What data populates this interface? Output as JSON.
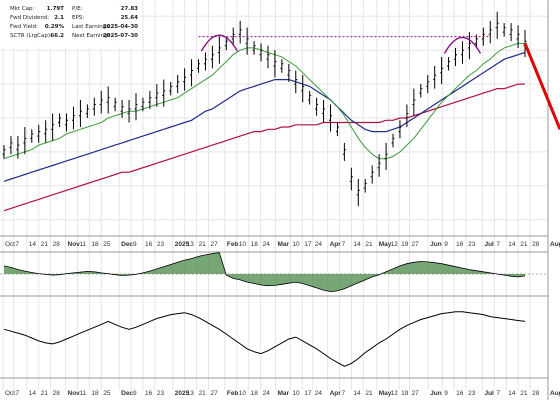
{
  "info": {
    "left": [
      {
        "label": "Mkt Cap:",
        "value": "1.79T"
      },
      {
        "label": "Fwd Dividend:",
        "value": "2.1"
      },
      {
        "label": "Fwd Yield:",
        "value": "0.29%"
      },
      {
        "label": "SCTR (LrgCap):",
        "value": "66.2"
      }
    ],
    "right": [
      {
        "label": "P/E:",
        "value": "27.83"
      },
      {
        "label": "EPS:",
        "value": "25.64"
      },
      {
        "label": "Last Earnings:",
        "value": "2025-04-30"
      },
      {
        "label": "Next Earnings:",
        "value": "2025-07-30"
      }
    ]
  },
  "colors": {
    "price": "#000000",
    "ma_green": "#3c9a3c",
    "ma_navy": "#202c8c",
    "ma_red": "#b01040",
    "annotation": "#8a0f8a",
    "projection": "#e00000",
    "histogram": "#4a8a4a"
  },
  "chart_data": [
    {
      "type": "line",
      "panel": "price",
      "x_ticks": [
        "Oct",
        "7",
        "14",
        "21",
        "28",
        "Nov",
        "11",
        "18",
        "25",
        "Dec",
        "9",
        "16",
        "23",
        "2025",
        "13",
        "21",
        "27",
        "Feb",
        "10",
        "18",
        "24",
        "Mar",
        "10",
        "17",
        "24",
        "Apr",
        "7",
        "14",
        "21",
        "May",
        "12",
        "19",
        "27",
        "Jun",
        "9",
        "16",
        "23",
        "Jul",
        "7",
        "14",
        "21",
        "28",
        "Aug"
      ],
      "x_label_positions": [
        4,
        18,
        36,
        52,
        68,
        88,
        104,
        120,
        136,
        160,
        176,
        192,
        208,
        232,
        248,
        264,
        280,
        302,
        318,
        334,
        350,
        370,
        390,
        406,
        420,
        440,
        456,
        472,
        488,
        506,
        522,
        536,
        550,
        575,
        594,
        610,
        626,
        648,
        664,
        680,
        696,
        712,
        736
      ],
      "series": [
        {
          "role": "price",
          "values": [
            130,
            133,
            132,
            135,
            137,
            138,
            139,
            141,
            144,
            143,
            145,
            147,
            148,
            150,
            152,
            153,
            151,
            149,
            148,
            150,
            151,
            153,
            155,
            156,
            158,
            160,
            162,
            165,
            168,
            170,
            172,
            175,
            178,
            181,
            183,
            179,
            176,
            174,
            172,
            169,
            168,
            165,
            161,
            158,
            154,
            150,
            148,
            145,
            140,
            130,
            118,
            112,
            115,
            120,
            124,
            128,
            135,
            140,
            146,
            152,
            157,
            160,
            163,
            166,
            169,
            172,
            174,
            177,
            179,
            181,
            183,
            186,
            184,
            183,
            181,
            178
          ]
        },
        {
          "role": "ma_short",
          "values": [
            127,
            128,
            129,
            130,
            131,
            133,
            134,
            135,
            136,
            138,
            139,
            140,
            141,
            142,
            143,
            145,
            146,
            147,
            148,
            148,
            149,
            150,
            151,
            152,
            153,
            154,
            156,
            158,
            160,
            162,
            164,
            167,
            170,
            173,
            175,
            176,
            176,
            175,
            174,
            173,
            172,
            170,
            168,
            165,
            162,
            159,
            156,
            153,
            150,
            146,
            141,
            136,
            132,
            129,
            127,
            127,
            128,
            130,
            133,
            136,
            140,
            144,
            148,
            152,
            155,
            158,
            161,
            164,
            166,
            169,
            171,
            174,
            176,
            177,
            178,
            178
          ]
        },
        {
          "role": "ma_medium",
          "values": [
            117,
            118,
            119,
            120,
            121,
            122,
            123,
            124,
            125,
            126,
            127,
            128,
            129,
            130,
            131,
            132,
            133,
            134,
            135,
            136,
            137,
            138,
            139,
            140,
            141,
            142,
            143,
            144,
            146,
            148,
            149,
            151,
            153,
            155,
            157,
            158,
            159,
            160,
            161,
            162,
            162,
            162,
            161,
            160,
            159,
            157,
            155,
            153,
            150,
            147,
            144,
            142,
            140,
            139,
            139,
            139,
            140,
            141,
            143,
            145,
            147,
            149,
            151,
            153,
            155,
            157,
            159,
            161,
            163,
            165,
            167,
            169,
            171,
            172,
            173,
            174
          ]
        },
        {
          "role": "ma_long",
          "values": [
            104,
            105,
            106,
            107,
            108,
            109,
            110,
            111,
            112,
            113,
            114,
            115,
            116,
            117,
            118,
            119,
            120,
            121,
            121,
            122,
            123,
            124,
            125,
            126,
            127,
            128,
            129,
            130,
            131,
            132,
            133,
            134,
            135,
            136,
            137,
            138,
            139,
            139,
            140,
            140,
            141,
            141,
            142,
            142,
            142,
            142,
            143,
            143,
            143,
            143,
            143,
            143,
            143,
            143,
            143,
            144,
            144,
            145,
            145,
            146,
            147,
            148,
            149,
            150,
            151,
            152,
            153,
            154,
            155,
            156,
            157,
            158,
            158,
            159,
            160,
            160
          ]
        }
      ],
      "annotations": {
        "resistance_level": 181,
        "head_and_shoulders_peaks": [
          31,
          66
        ],
        "projection": {
          "from_index": 75,
          "from_value": 178,
          "to_value": 140
        }
      }
    },
    {
      "type": "bar",
      "panel": "indicator_1",
      "values": [
        2.2,
        1.8,
        1.2,
        0.8,
        0.4,
        0.1,
        -0.1,
        -0.3,
        -0.2,
        0.1,
        0.3,
        0.5,
        0.7,
        0.6,
        0.3,
        0.1,
        -0.2,
        -0.4,
        -0.3,
        -0.1,
        0.3,
        0.8,
        1.4,
        2.0,
        2.6,
        3.2,
        3.8,
        4.2,
        4.8,
        5.2,
        5.6,
        5.8,
        -0.3,
        -1.2,
        -1.6,
        -2.2,
        -2.6,
        -3.0,
        -3.2,
        -3.1,
        -2.8,
        -2.5,
        -2.2,
        -2.6,
        -3.2,
        -3.8,
        -4.4,
        -4.8,
        -4.6,
        -4.0,
        -3.2,
        -2.4,
        -1.6,
        -0.8,
        -0.2,
        0.6,
        1.4,
        2.2,
        2.8,
        3.2,
        3.4,
        3.3,
        3.1,
        2.8,
        2.4,
        2.0,
        1.6,
        1.2,
        0.9,
        0.6,
        0.3,
        0.0,
        -0.3,
        -0.6,
        -0.8,
        -0.5
      ],
      "ylim": [
        -6,
        6
      ]
    },
    {
      "type": "line",
      "panel": "indicator_2",
      "values": [
        50,
        48,
        46,
        44,
        41,
        38,
        36,
        35,
        37,
        40,
        43,
        46,
        49,
        52,
        55,
        58,
        55,
        52,
        50,
        52,
        55,
        58,
        61,
        63,
        65,
        66,
        67,
        65,
        62,
        58,
        54,
        50,
        45,
        40,
        35,
        30,
        27,
        25,
        28,
        32,
        36,
        40,
        42,
        38,
        34,
        30,
        25,
        20,
        16,
        12,
        15,
        20,
        26,
        31,
        36,
        40,
        45,
        50,
        54,
        57,
        60,
        62,
        64,
        66,
        67,
        68,
        68,
        67,
        66,
        65,
        63,
        62,
        61,
        60,
        59,
        58
      ],
      "ylim": [
        0,
        80
      ]
    }
  ]
}
